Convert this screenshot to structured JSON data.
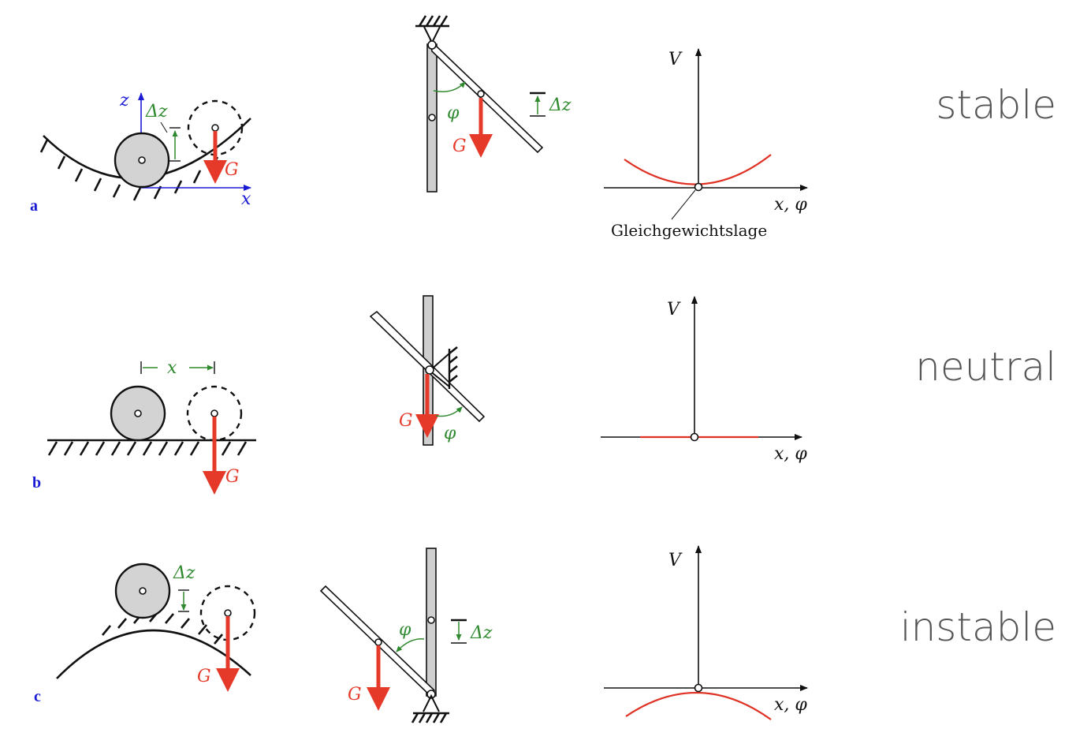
{
  "rows": [
    {
      "id": "stable",
      "label": "stable",
      "panel_letter": "a",
      "axis_z": "z",
      "axis_x": "x",
      "dz": "Δz",
      "force": "G",
      "phi": "φ",
      "rod_dz": "Δz",
      "rod_force": "G",
      "graph_v": "V",
      "graph_x": "x, φ",
      "graph_annotation": "Gleichgewichtslage"
    },
    {
      "id": "neutral",
      "label": "neutral",
      "panel_letter": "b",
      "displacement": "x",
      "force": "G",
      "rod_force": "G",
      "phi": "φ",
      "graph_v": "V",
      "graph_x": "x, φ"
    },
    {
      "id": "instable",
      "label": "instable",
      "panel_letter": "c",
      "dz": "Δz",
      "force": "G",
      "phi": "φ",
      "rod_dz": "Δz",
      "rod_force": "G",
      "graph_v": "V",
      "graph_x": "x, φ"
    }
  ],
  "colors": {
    "force": "#e53a2a",
    "annotation": "#2f8a2f",
    "axis": "#1b1bd6",
    "curve": "#e03224",
    "label": "#555555"
  }
}
